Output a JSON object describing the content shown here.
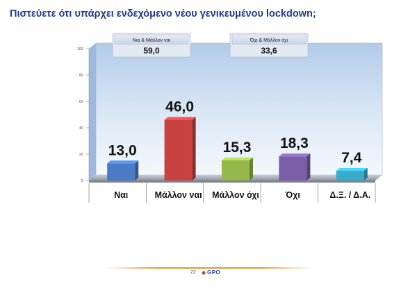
{
  "title": "Πιστεύετε ότι υπάρχει ενδεχόμενο νέου γενικευμένου lockdown;",
  "summary_boxes": [
    {
      "label": "Ναι & Μάλλον ναι",
      "value": "59,0"
    },
    {
      "label": "Όχι & Μάλλον όχι",
      "value": "33,6"
    }
  ],
  "footer": {
    "page_number": "22",
    "logo_text": "GPO"
  },
  "chart_data": {
    "type": "bar",
    "categories": [
      "Ναι",
      "Μάλλον ναι",
      "Μάλλον όχι",
      "Όχι",
      "Δ.Ξ. / Δ.Α."
    ],
    "values": [
      13.0,
      46.0,
      15.3,
      18.3,
      7.4
    ],
    "value_labels": [
      "13,0",
      "46,0",
      "15,3",
      "18,3",
      "7,4"
    ],
    "colors": [
      "#4a7bc4",
      "#c8423f",
      "#96b84a",
      "#7a5ea8",
      "#3aaccb"
    ],
    "ylim": [
      0,
      100
    ],
    "yticks": [
      "0",
      "20",
      "40",
      "60",
      "80",
      "100"
    ],
    "title": "",
    "xlabel": "",
    "ylabel": ""
  }
}
